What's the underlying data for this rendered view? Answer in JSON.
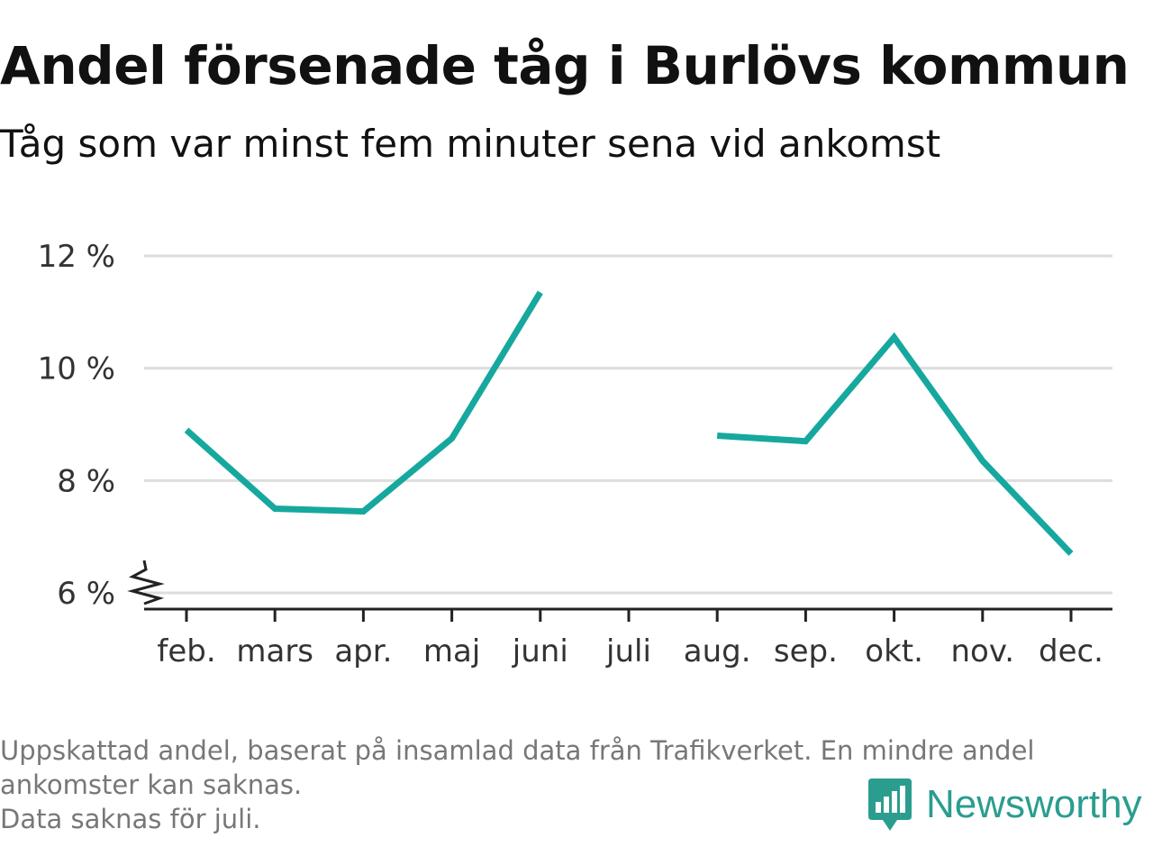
{
  "header": {
    "title": "Andel försenade tåg i Burlövs kommun",
    "subtitle": "Tåg som var minst fem minuter sena vid ankomst"
  },
  "footnote": {
    "lines": [
      "Uppskattad andel, baserat på insamlad data från Trafikverket. En mindre andel",
      "ankomster kan saknas.",
      "Data saknas för juli."
    ]
  },
  "brand": {
    "name": "Newsworthy",
    "logo_icon": "newsworthy-chart-bubble-icon",
    "color": "#2a9d8f"
  },
  "chart_data": {
    "type": "line",
    "categories": [
      "feb.",
      "mars",
      "apr.",
      "maj",
      "juni",
      "juli",
      "aug.",
      "sep.",
      "okt.",
      "nov.",
      "dec."
    ],
    "series": [
      {
        "values": [
          8.9,
          7.5,
          7.45,
          8.75,
          11.35,
          null,
          8.8,
          8.7,
          10.55,
          8.35,
          6.7
        ],
        "color": "#16a89e"
      }
    ],
    "ylim": [
      6,
      12
    ],
    "yticks": [
      6,
      8,
      10,
      12
    ],
    "ytick_labels": [
      "6 %",
      "8 %",
      "10 %",
      "12 %"
    ],
    "grid": true,
    "axis_break": true,
    "grid_color": "#dddddd",
    "axis_color": "#222222"
  }
}
